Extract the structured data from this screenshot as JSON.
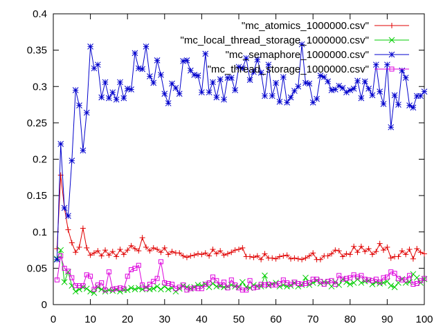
{
  "chart_data": {
    "type": "line",
    "title": "",
    "xlabel": "",
    "ylabel": "",
    "xlim": [
      0,
      100
    ],
    "ylim": [
      0,
      0.4
    ],
    "x_ticks": [
      "0",
      "10",
      "20",
      "30",
      "40",
      "50",
      "60",
      "70",
      "80",
      "90",
      "100"
    ],
    "y_ticks": [
      "0",
      "0.05",
      "0.1",
      "0.15",
      "0.2",
      "0.25",
      "0.3",
      "0.35",
      "0.4"
    ],
    "grid": false,
    "legend_position": "top-right",
    "x": [
      1,
      2,
      3,
      4,
      5,
      6,
      7,
      8,
      9,
      10,
      11,
      12,
      13,
      14,
      15,
      16,
      17,
      18,
      19,
      20,
      21,
      22,
      23,
      24,
      25,
      26,
      27,
      28,
      29,
      30,
      31,
      32,
      33,
      34,
      35,
      36,
      37,
      38,
      39,
      40,
      41,
      42,
      43,
      44,
      45,
      46,
      47,
      48,
      49,
      50,
      51,
      52,
      53,
      54,
      55,
      56,
      57,
      58,
      59,
      60,
      61,
      62,
      63,
      64,
      65,
      66,
      67,
      68,
      69,
      70,
      71,
      72,
      73,
      74,
      75,
      76,
      77,
      78,
      79,
      80,
      81,
      82,
      83,
      84,
      85,
      86,
      87,
      88,
      89,
      90,
      91,
      92,
      93,
      94,
      95,
      96,
      97,
      98,
      99,
      100
    ],
    "series": [
      {
        "name": "\"mc_atomics_1000000.csv\"",
        "color": "#e00000",
        "marker": "plus",
        "values": [
          0.077,
          0.178,
          0.133,
          0.103,
          0.085,
          0.072,
          0.079,
          0.105,
          0.078,
          0.068,
          0.071,
          0.074,
          0.067,
          0.075,
          0.068,
          0.073,
          0.066,
          0.076,
          0.069,
          0.075,
          0.081,
          0.077,
          0.074,
          0.092,
          0.079,
          0.074,
          0.078,
          0.076,
          0.072,
          0.078,
          0.069,
          0.073,
          0.071,
          0.071,
          0.067,
          0.065,
          0.067,
          0.068,
          0.07,
          0.069,
          0.071,
          0.067,
          0.076,
          0.07,
          0.074,
          0.068,
          0.07,
          0.072,
          0.075,
          0.076,
          0.078,
          0.066,
          0.066,
          0.065,
          0.067,
          0.062,
          0.07,
          0.064,
          0.064,
          0.063,
          0.066,
          0.067,
          0.068,
          0.063,
          0.064,
          0.063,
          0.062,
          0.064,
          0.067,
          0.071,
          0.062,
          0.062,
          0.067,
          0.067,
          0.07,
          0.075,
          0.074,
          0.066,
          0.07,
          0.069,
          0.08,
          0.072,
          0.08,
          0.073,
          0.077,
          0.069,
          0.073,
          0.084,
          0.075,
          0.079,
          0.064,
          0.066,
          0.066,
          0.074,
          0.069,
          0.076,
          0.063,
          0.077,
          0.072,
          0.07
        ]
      },
      {
        "name": "\"mc_local_thread_storage_1000000.csv\"",
        "color": "#00cc00",
        "marker": "cross",
        "values": [
          0.063,
          0.075,
          0.031,
          0.045,
          0.026,
          0.018,
          0.021,
          0.024,
          0.022,
          0.018,
          0.016,
          0.024,
          0.021,
          0.018,
          0.02,
          0.019,
          0.021,
          0.018,
          0.02,
          0.02,
          0.023,
          0.021,
          0.023,
          0.021,
          0.024,
          0.021,
          0.022,
          0.025,
          0.021,
          0.025,
          0.021,
          0.023,
          0.018,
          0.022,
          0.026,
          0.024,
          0.022,
          0.024,
          0.027,
          0.026,
          0.028,
          0.024,
          0.029,
          0.025,
          0.026,
          0.024,
          0.025,
          0.027,
          0.025,
          0.024,
          0.031,
          0.024,
          0.023,
          0.027,
          0.025,
          0.025,
          0.04,
          0.026,
          0.028,
          0.03,
          0.025,
          0.027,
          0.025,
          0.026,
          0.03,
          0.025,
          0.027,
          0.037,
          0.027,
          0.03,
          0.033,
          0.029,
          0.031,
          0.03,
          0.025,
          0.031,
          0.027,
          0.035,
          0.031,
          0.028,
          0.03,
          0.035,
          0.03,
          0.032,
          0.033,
          0.028,
          0.031,
          0.029,
          0.03,
          0.032,
          0.026,
          0.024,
          0.03,
          0.035,
          0.03,
          0.031,
          0.042,
          0.037,
          0.03,
          0.035
        ]
      },
      {
        "name": "\"mc_semaphore_1000000.csv\"",
        "color": "#0000cc",
        "marker": "star",
        "values": [
          0.062,
          0.221,
          0.133,
          0.122,
          0.198,
          0.295,
          0.274,
          0.212,
          0.264,
          0.355,
          0.325,
          0.33,
          0.285,
          0.306,
          0.284,
          0.292,
          0.282,
          0.306,
          0.284,
          0.297,
          0.296,
          0.346,
          0.325,
          0.324,
          0.355,
          0.314,
          0.305,
          0.336,
          0.316,
          0.29,
          0.277,
          0.304,
          0.298,
          0.29,
          0.335,
          0.336,
          0.322,
          0.316,
          0.315,
          0.292,
          0.345,
          0.292,
          0.306,
          0.285,
          0.31,
          0.282,
          0.312,
          0.312,
          0.295,
          0.327,
          0.325,
          0.339,
          0.309,
          0.32,
          0.337,
          0.319,
          0.287,
          0.33,
          0.287,
          0.305,
          0.279,
          0.313,
          0.278,
          0.285,
          0.294,
          0.3,
          0.358,
          0.305,
          0.304,
          0.278,
          0.283,
          0.315,
          0.313,
          0.307,
          0.295,
          0.296,
          0.301,
          0.298,
          0.292,
          0.295,
          0.297,
          0.308,
          0.284,
          0.307,
          0.297,
          0.288,
          0.33,
          0.293,
          0.276,
          0.33,
          0.244,
          0.288,
          0.275,
          0.322,
          0.312,
          0.274,
          0.271,
          0.287,
          0.287,
          0.293
        ]
      },
      {
        "name": "\"mc_thread_storage_1000000.csv\"",
        "color": "#dd00dd",
        "marker": "square",
        "values": [
          0.034,
          0.067,
          0.05,
          0.046,
          0.037,
          0.026,
          0.026,
          0.026,
          0.041,
          0.039,
          0.021,
          0.027,
          0.03,
          0.02,
          0.045,
          0.021,
          0.022,
          0.023,
          0.022,
          0.039,
          0.048,
          0.05,
          0.054,
          0.027,
          0.022,
          0.028,
          0.032,
          0.036,
          0.059,
          0.03,
          0.029,
          0.028,
          0.022,
          0.024,
          0.027,
          0.02,
          0.022,
          0.023,
          0.022,
          0.022,
          0.028,
          0.03,
          0.038,
          0.033,
          0.027,
          0.031,
          0.023,
          0.034,
          0.027,
          0.023,
          0.02,
          0.02,
          0.033,
          0.023,
          0.024,
          0.028,
          0.027,
          0.028,
          0.027,
          0.027,
          0.029,
          0.034,
          0.03,
          0.028,
          0.031,
          0.029,
          0.028,
          0.029,
          0.03,
          0.035,
          0.035,
          0.032,
          0.028,
          0.032,
          0.033,
          0.028,
          0.04,
          0.035,
          0.036,
          0.037,
          0.041,
          0.038,
          0.04,
          0.035,
          0.034,
          0.033,
          0.035,
          0.031,
          0.037,
          0.038,
          0.045,
          0.043,
          0.036,
          0.034,
          0.034,
          0.04,
          0.028,
          0.029,
          0.033,
          0.036
        ]
      }
    ]
  }
}
